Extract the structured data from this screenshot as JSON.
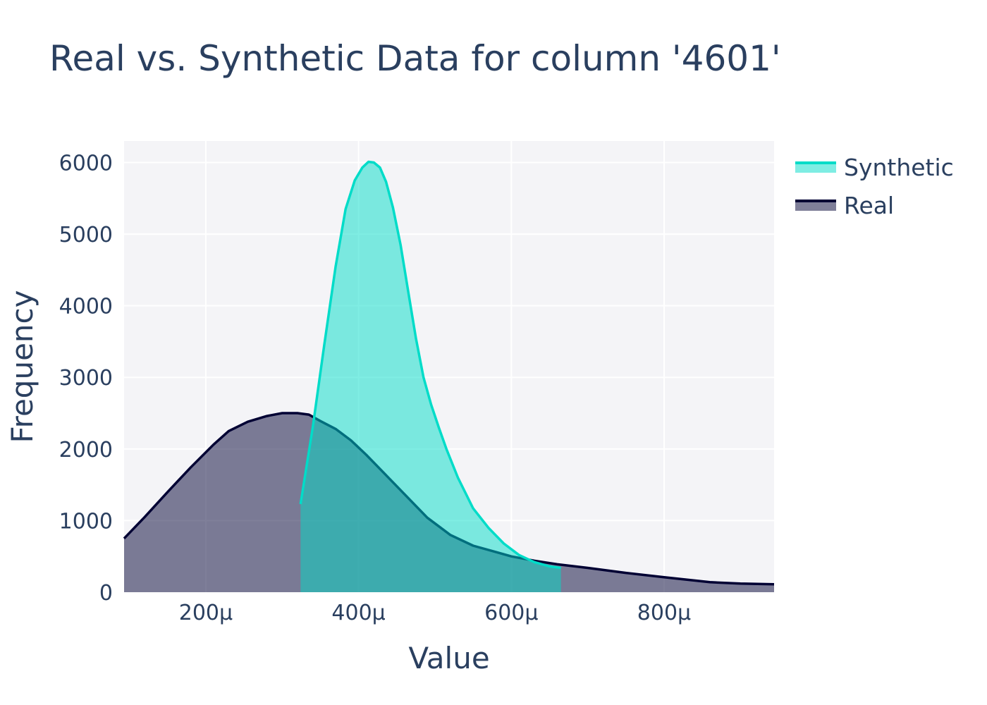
{
  "chart_data": {
    "type": "area",
    "title": "Real vs. Synthetic Data for column '4601'",
    "xlabel": "Value",
    "ylabel": "Frequency",
    "xlim": [
      9.3e-05,
      0.000944
    ],
    "ylim": [
      0,
      6300
    ],
    "x_ticks": [
      {
        "value": 0.0002,
        "label": "200μ"
      },
      {
        "value": 0.0004,
        "label": "400μ"
      },
      {
        "value": 0.0006,
        "label": "600μ"
      },
      {
        "value": 0.0008,
        "label": "800μ"
      }
    ],
    "y_ticks": [
      {
        "value": 0,
        "label": "0"
      },
      {
        "value": 1000,
        "label": "1000"
      },
      {
        "value": 2000,
        "label": "2000"
      },
      {
        "value": 3000,
        "label": "3000"
      },
      {
        "value": 4000,
        "label": "4000"
      },
      {
        "value": 5000,
        "label": "5000"
      },
      {
        "value": 6000,
        "label": "6000"
      }
    ],
    "grid": true,
    "legend_position": "top-right",
    "series": [
      {
        "name": "Real",
        "line_color": "#000033",
        "fill_color": "rgba(0,0,51,0.5)",
        "x": [
          9.3e-05,
          0.00012,
          0.00015,
          0.00018,
          0.00021,
          0.00023,
          0.000255,
          0.00028,
          0.0003,
          0.00032,
          0.000335,
          0.00035,
          0.00037,
          0.00039,
          0.00041,
          0.00043,
          0.00046,
          0.00049,
          0.00052,
          0.00055,
          0.00058,
          0.0006,
          0.00063,
          0.00066,
          0.0007,
          0.00075,
          0.0008,
          0.00086,
          0.0009,
          0.000944
        ],
        "y": [
          750,
          1050,
          1400,
          1740,
          2060,
          2250,
          2380,
          2460,
          2500,
          2500,
          2480,
          2390,
          2280,
          2120,
          1920,
          1700,
          1370,
          1040,
          800,
          650,
          560,
          500,
          440,
          390,
          340,
          270,
          210,
          140,
          120,
          110
        ]
      },
      {
        "name": "Synthetic",
        "line_color": "#00dcc8",
        "fill_color": "rgba(0,220,200,0.5)",
        "x": [
          0.000324,
          0.00034,
          0.000355,
          0.00037,
          0.000383,
          0.000395,
          0.000405,
          0.000413,
          0.00042,
          0.000428,
          0.000436,
          0.000445,
          0.000455,
          0.000465,
          0.000475,
          0.000485,
          0.000495,
          0.000505,
          0.000515,
          0.00053,
          0.00055,
          0.00057,
          0.00059,
          0.00061,
          0.00063,
          0.00065,
          0.000665
        ],
        "y": [
          1230,
          2300,
          3450,
          4550,
          5350,
          5750,
          5930,
          6010,
          6000,
          5930,
          5730,
          5370,
          4850,
          4200,
          3550,
          3000,
          2620,
          2300,
          2000,
          1600,
          1170,
          900,
          680,
          520,
          420,
          360,
          340
        ]
      }
    ],
    "legend_order": [
      "Synthetic",
      "Real"
    ]
  }
}
